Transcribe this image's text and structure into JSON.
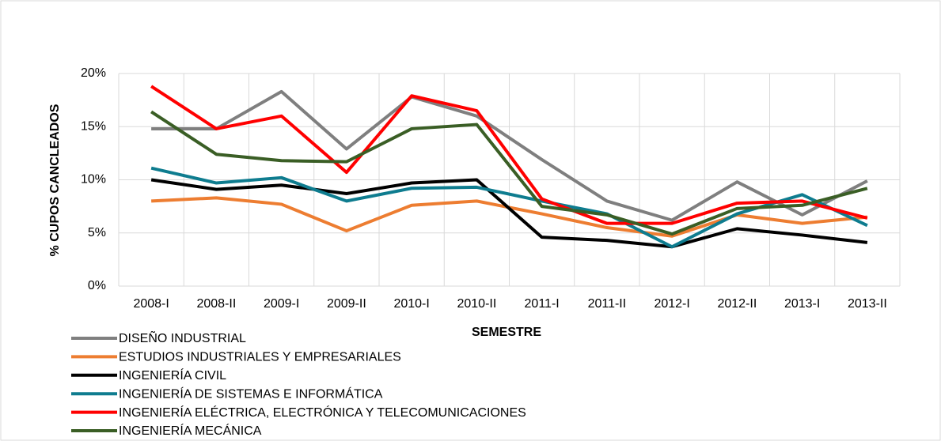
{
  "chart_data": {
    "type": "line",
    "x_label": "SEMESTRE",
    "y_label": "% CUPOS CANCLEADOS",
    "categories": [
      "2008-I",
      "2008-II",
      "2009-I",
      "2009-II",
      "2010-I",
      "2010-II",
      "2011-I",
      "2011-II",
      "2012-I",
      "2012-II",
      "2013-I",
      "2013-II"
    ],
    "series": [
      {
        "name": "DISEÑO INDUSTRIAL",
        "color": "#7f7f7f",
        "values": [
          14.8,
          14.8,
          18.3,
          12.9,
          17.8,
          16.0,
          11.9,
          8.0,
          6.2,
          9.8,
          6.7,
          9.9
        ]
      },
      {
        "name": "ESTUDIOS INDUSTRIALES Y EMPRESARIALES",
        "color": "#ed7d31",
        "values": [
          8.0,
          8.3,
          7.7,
          5.2,
          7.6,
          8.0,
          6.8,
          5.5,
          4.7,
          6.7,
          5.9,
          6.5
        ]
      },
      {
        "name": "INGENIERÍA CIVIL",
        "color": "#000000",
        "values": [
          10.0,
          9.1,
          9.5,
          8.7,
          9.7,
          10.0,
          4.6,
          4.3,
          3.7,
          5.4,
          4.8,
          4.1
        ]
      },
      {
        "name": "INGENIERÍA DE SISTEMAS E INFORMÁTICA",
        "color": "#0e7c8f",
        "values": [
          11.1,
          9.7,
          10.2,
          8.0,
          9.2,
          9.3,
          8.0,
          6.8,
          3.7,
          6.8,
          8.6,
          5.7
        ]
      },
      {
        "name": "INGENIERÍA ELÉCTRICA, ELECTRÓNICA Y TELECOMUNICACIONES",
        "color": "#ff0000",
        "values": [
          18.8,
          14.8,
          16.0,
          10.7,
          17.9,
          16.5,
          8.2,
          5.9,
          5.9,
          7.8,
          8.0,
          6.4
        ]
      },
      {
        "name": "INGENIERÍA MECÁNICA",
        "color": "#3a5e25",
        "values": [
          16.4,
          12.4,
          11.8,
          11.7,
          14.8,
          15.2,
          7.5,
          6.7,
          4.9,
          7.3,
          7.6,
          9.2
        ]
      }
    ],
    "ylim": [
      0,
      20
    ],
    "yticks": [
      {
        "value": 0,
        "label": "0%"
      },
      {
        "value": 5,
        "label": "5%"
      },
      {
        "value": 10,
        "label": "10%"
      },
      {
        "value": 15,
        "label": "15%"
      },
      {
        "value": 20,
        "label": "20%"
      }
    ],
    "grid": true,
    "legend": "bottom-left"
  }
}
